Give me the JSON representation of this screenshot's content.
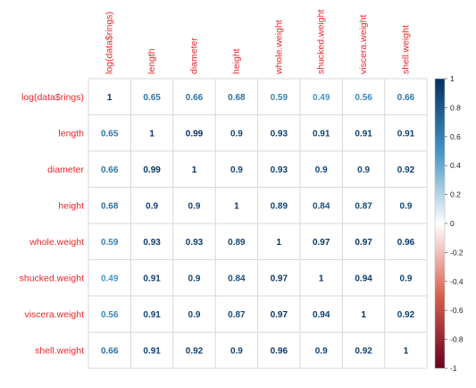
{
  "chart_data": {
    "type": "heatmap",
    "variables": [
      "log(data$rings)",
      "length",
      "diameter",
      "height",
      "whole.weight",
      "shucked.weight",
      "viscera.weight",
      "shell.weight"
    ],
    "matrix": [
      [
        1,
        0.65,
        0.66,
        0.68,
        0.59,
        0.49,
        0.56,
        0.66
      ],
      [
        0.65,
        1,
        0.99,
        0.9,
        0.93,
        0.91,
        0.91,
        0.91
      ],
      [
        0.66,
        0.99,
        1,
        0.9,
        0.93,
        0.9,
        0.9,
        0.92
      ],
      [
        0.68,
        0.9,
        0.9,
        1,
        0.89,
        0.84,
        0.87,
        0.9
      ],
      [
        0.59,
        0.93,
        0.93,
        0.89,
        1,
        0.97,
        0.97,
        0.96
      ],
      [
        0.49,
        0.91,
        0.9,
        0.84,
        0.97,
        1,
        0.94,
        0.9
      ],
      [
        0.56,
        0.91,
        0.9,
        0.87,
        0.97,
        0.94,
        1,
        0.92
      ],
      [
        0.66,
        0.91,
        0.92,
        0.9,
        0.96,
        0.9,
        0.92,
        1
      ]
    ],
    "colorbar": {
      "ticks": [
        "1",
        "0.8",
        "0.6",
        "0.4",
        "0.2",
        "0",
        "-0.2",
        "-0.4",
        "-0.6",
        "-0.8",
        "-1"
      ],
      "range": [
        -1,
        1
      ],
      "colors": {
        "negative_end": "#67001f",
        "negative_mid": "#d6604d",
        "neutral": "#ffffff",
        "positive_mid": "#4393c3",
        "positive_end": "#053061"
      }
    },
    "label_color": "#e8272b",
    "grid_color": "#d9d9d9",
    "value_labels": "numbers"
  }
}
